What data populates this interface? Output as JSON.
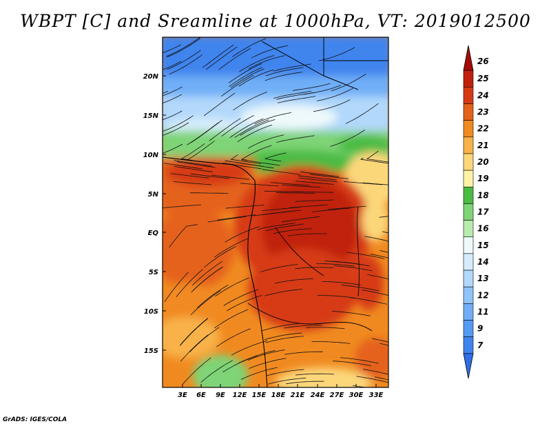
{
  "title": "WBPT [C] and Sreamline at 1000hPa, VT: 2019012500",
  "credit": "GrADS: IGES/COLA",
  "map": {
    "lat_labels": [
      "20N",
      "15N",
      "10N",
      "5N",
      "EQ",
      "5S",
      "10S",
      "15S"
    ],
    "lon_labels": [
      "3E",
      "6E",
      "9E",
      "12E",
      "15E",
      "18E",
      "21E",
      "24E",
      "27E",
      "30E",
      "33E"
    ]
  },
  "colorbar": {
    "labels": [
      "7",
      "9",
      "11",
      "12",
      "13",
      "14",
      "15",
      "16",
      "17",
      "18",
      "19",
      "20",
      "21",
      "22",
      "23",
      "24",
      "25",
      "26"
    ],
    "colors": [
      "#2f6fe6",
      "#3f84ee",
      "#559af4",
      "#70aff7",
      "#8fc4f9",
      "#b2d8fb",
      "#d6ecfc",
      "#eef9fb",
      "#b7ecae",
      "#7ed476",
      "#4cbb44",
      "#fff2a6",
      "#fcd77a",
      "#f8b24a",
      "#f18a20",
      "#e5621a",
      "#d63a14",
      "#c0200c",
      "#a50b06"
    ]
  }
}
